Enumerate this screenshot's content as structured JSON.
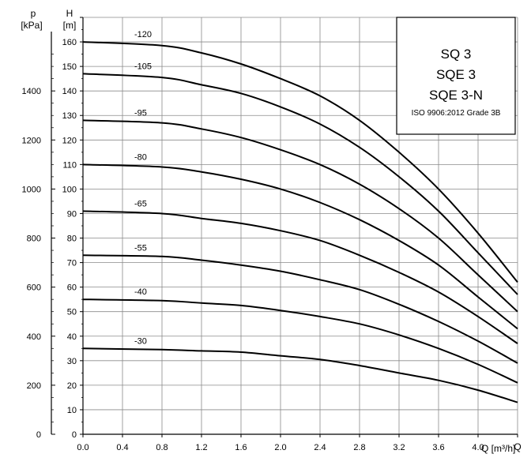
{
  "chart_data": {
    "type": "line",
    "xlabel": "Q [m³/h]",
    "ylabel": "H [m]",
    "y2label": "p [kPa]",
    "y2label_top": "p",
    "y2label_unit": "[kPa]",
    "ylabel_top": "H",
    "ylabel_unit": "[m]",
    "xlim": [
      0,
      4.4
    ],
    "ylim": [
      0,
      170
    ],
    "y2lim": [
      0,
      1700
    ],
    "grid": true,
    "xticks": [
      "0.0",
      "0.4",
      "0.8",
      "1.2",
      "1.6",
      "2.0",
      "2.4",
      "2.8",
      "3.2",
      "3.6",
      "4.0",
      "Q"
    ],
    "yticks": [
      "0",
      "10",
      "20",
      "30",
      "40",
      "50",
      "60",
      "70",
      "80",
      "90",
      "100",
      "110",
      "120",
      "130",
      "140",
      "150",
      "160",
      "H"
    ],
    "y2ticks": [
      "0",
      "200",
      "400",
      "600",
      "800",
      "1000",
      "1200",
      "1400"
    ],
    "legend": {
      "position": "top-right",
      "lines": [
        "SQ 3",
        "SQE 3",
        "SQE 3-N"
      ],
      "standard": "ISO 9906:2012 Grade 3B"
    },
    "series": [
      {
        "name": "-120",
        "x": [
          0.0,
          0.8,
          1.2,
          1.6,
          2.0,
          2.4,
          2.8,
          3.2,
          3.6,
          4.0,
          4.4
        ],
        "y": [
          160,
          158.5,
          155.5,
          151,
          145,
          138,
          128,
          115,
          100,
          82,
          62
        ]
      },
      {
        "name": "-105",
        "x": [
          0.0,
          0.8,
          1.2,
          1.6,
          2.0,
          2.4,
          2.8,
          3.2,
          3.6,
          4.0,
          4.4
        ],
        "y": [
          147,
          145.5,
          142.5,
          139,
          133.5,
          126.5,
          117,
          105,
          91,
          74,
          57
        ]
      },
      {
        "name": "-95",
        "x": [
          0.0,
          0.8,
          1.2,
          1.6,
          2.0,
          2.4,
          2.8,
          3.2,
          3.6,
          4.0,
          4.4
        ],
        "y": [
          128,
          127,
          124.5,
          121,
          116,
          110,
          102,
          92,
          80,
          65,
          50
        ]
      },
      {
        "name": "-80",
        "x": [
          0.0,
          0.8,
          1.2,
          1.6,
          2.0,
          2.4,
          2.8,
          3.2,
          3.6,
          4.0,
          4.4
        ],
        "y": [
          110,
          109,
          107,
          104,
          100,
          94.5,
          87.5,
          79,
          69,
          56,
          43
        ]
      },
      {
        "name": "-65",
        "x": [
          0.0,
          0.8,
          1.2,
          1.6,
          2.0,
          2.4,
          2.8,
          3.2,
          3.6,
          4.0,
          4.4
        ],
        "y": [
          91,
          90,
          88,
          86,
          83,
          79,
          73,
          66,
          58,
          48,
          37
        ]
      },
      {
        "name": "-55",
        "x": [
          0.0,
          0.8,
          1.2,
          1.6,
          2.0,
          2.4,
          2.8,
          3.2,
          3.6,
          4.0,
          4.4
        ],
        "y": [
          73,
          72.5,
          71,
          69,
          66.5,
          63,
          59,
          53,
          46,
          38,
          29
        ]
      },
      {
        "name": "-40",
        "x": [
          0.0,
          0.8,
          1.2,
          1.6,
          2.0,
          2.4,
          2.8,
          3.2,
          3.6,
          4.0,
          4.4
        ],
        "y": [
          55,
          54.5,
          53.5,
          52.5,
          50.5,
          48,
          45,
          40.5,
          35,
          28.5,
          21
        ]
      },
      {
        "name": "-30",
        "x": [
          0.0,
          0.8,
          1.2,
          1.6,
          2.0,
          2.4,
          2.8,
          3.2,
          3.6,
          4.0,
          4.4
        ],
        "y": [
          35,
          34.5,
          34,
          33.5,
          32,
          30.5,
          28,
          25,
          22,
          18,
          13
        ]
      }
    ]
  }
}
